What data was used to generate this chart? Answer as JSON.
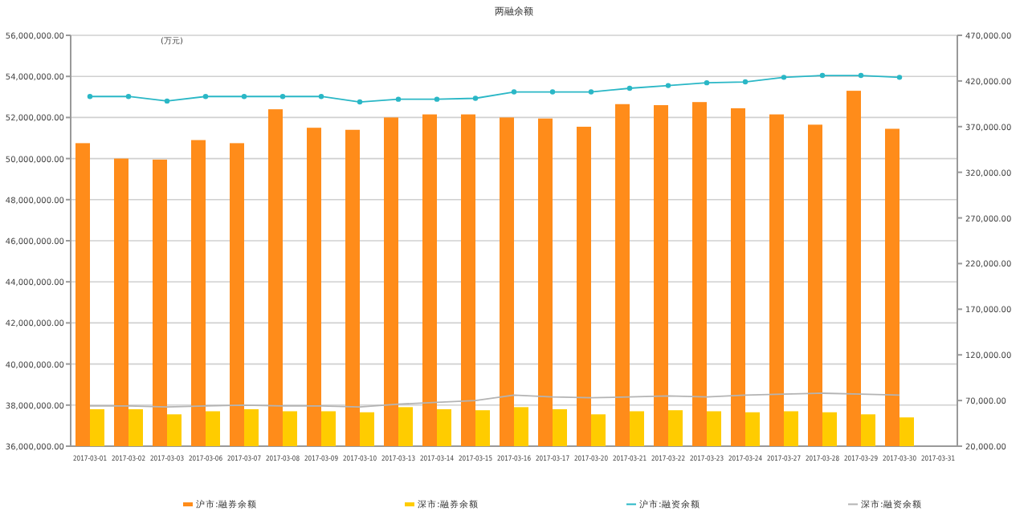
{
  "chart_data": {
    "type": "bar",
    "title": "两融余额",
    "annotations": [
      "(万元)"
    ],
    "categories": [
      "2017-03-01",
      "2017-03-02",
      "2017-03-03",
      "2017-03-06",
      "2017-03-07",
      "2017-03-08",
      "2017-03-09",
      "2017-03-10",
      "2017-03-13",
      "2017-03-14",
      "2017-03-15",
      "2017-03-16",
      "2017-03-17",
      "2017-03-20",
      "2017-03-21",
      "2017-03-22",
      "2017-03-23",
      "2017-03-24",
      "2017-03-27",
      "2017-03-28",
      "2017-03-29",
      "2017-03-30",
      "2017-03-31"
    ],
    "series": [
      {
        "name": "沪市:融券余额",
        "color": "#ff8c1a",
        "values": [
          50750000,
          50000000,
          49950000,
          50900000,
          50750000,
          52400000,
          51500000,
          51400000,
          52000000,
          52150000,
          52150000,
          52000000,
          51950000,
          51550000,
          52650000,
          52600000,
          52750000,
          52450000,
          52150000,
          51650000,
          53300000,
          51450000,
          null
        ]
      },
      {
        "name": "深市:融券余额",
        "color": "#ffcc00",
        "values": [
          37800000,
          37800000,
          37550000,
          37700000,
          37800000,
          37700000,
          37700000,
          37650000,
          37900000,
          37800000,
          37750000,
          37900000,
          37800000,
          37550000,
          37700000,
          37750000,
          37700000,
          37650000,
          37700000,
          37650000,
          37550000,
          37400000,
          null
        ]
      },
      {
        "name": "沪市:融资余额",
        "color": "#2ab7c6",
        "type": "line",
        "axis": "y2",
        "marker": "circle",
        "values": [
          403000,
          403000,
          398000,
          403000,
          403000,
          403000,
          403000,
          397000,
          400000,
          400000,
          401000,
          408000,
          408000,
          408000,
          412000,
          415000,
          418000,
          419000,
          424000,
          426000,
          426000,
          424000,
          null
        ]
      },
      {
        "name": "深市:融资余额",
        "color": "#b4b4b4",
        "type": "line",
        "axis": "y2",
        "marker": "none",
        "values": [
          64000,
          64000,
          63000,
          64000,
          65000,
          64000,
          64000,
          63000,
          66000,
          68000,
          70000,
          76000,
          74000,
          73000,
          74000,
          75000,
          74000,
          76000,
          77000,
          78000,
          77000,
          76000,
          null
        ]
      }
    ],
    "ylim": [
      36000000,
      56000000
    ],
    "yticks": [
      {
        "value": 36000000,
        "label": "36,000,000.00"
      },
      {
        "value": 38000000,
        "label": "38,000,000.00"
      },
      {
        "value": 40000000,
        "label": "40,000,000.00"
      },
      {
        "value": 42000000,
        "label": "42,000,000.00"
      },
      {
        "value": 44000000,
        "label": "44,000,000.00"
      },
      {
        "value": 46000000,
        "label": "46,000,000.00"
      },
      {
        "value": 48000000,
        "label": "48,000,000.00"
      },
      {
        "value": 50000000,
        "label": "50,000,000.00"
      },
      {
        "value": 52000000,
        "label": "52,000,000.00"
      },
      {
        "value": 54000000,
        "label": "54,000,000.00"
      },
      {
        "value": 56000000,
        "label": "56,000,000.00"
      }
    ],
    "y2lim": [
      20000,
      470000
    ],
    "y2ticks": [
      {
        "value": 20000,
        "label": "20,000.00"
      },
      {
        "value": 70000,
        "label": "70,000.00"
      },
      {
        "value": 120000,
        "label": "120,000.00"
      },
      {
        "value": 170000,
        "label": "170,000.00"
      },
      {
        "value": 220000,
        "label": "220,000.00"
      },
      {
        "value": 270000,
        "label": "270,000.00"
      },
      {
        "value": 320000,
        "label": "320,000.00"
      },
      {
        "value": 370000,
        "label": "370,000.00"
      },
      {
        "value": 420000,
        "label": "420,000.00"
      },
      {
        "value": 470000,
        "label": "470,000.00"
      }
    ],
    "grid": "y",
    "legend": "bottom"
  }
}
